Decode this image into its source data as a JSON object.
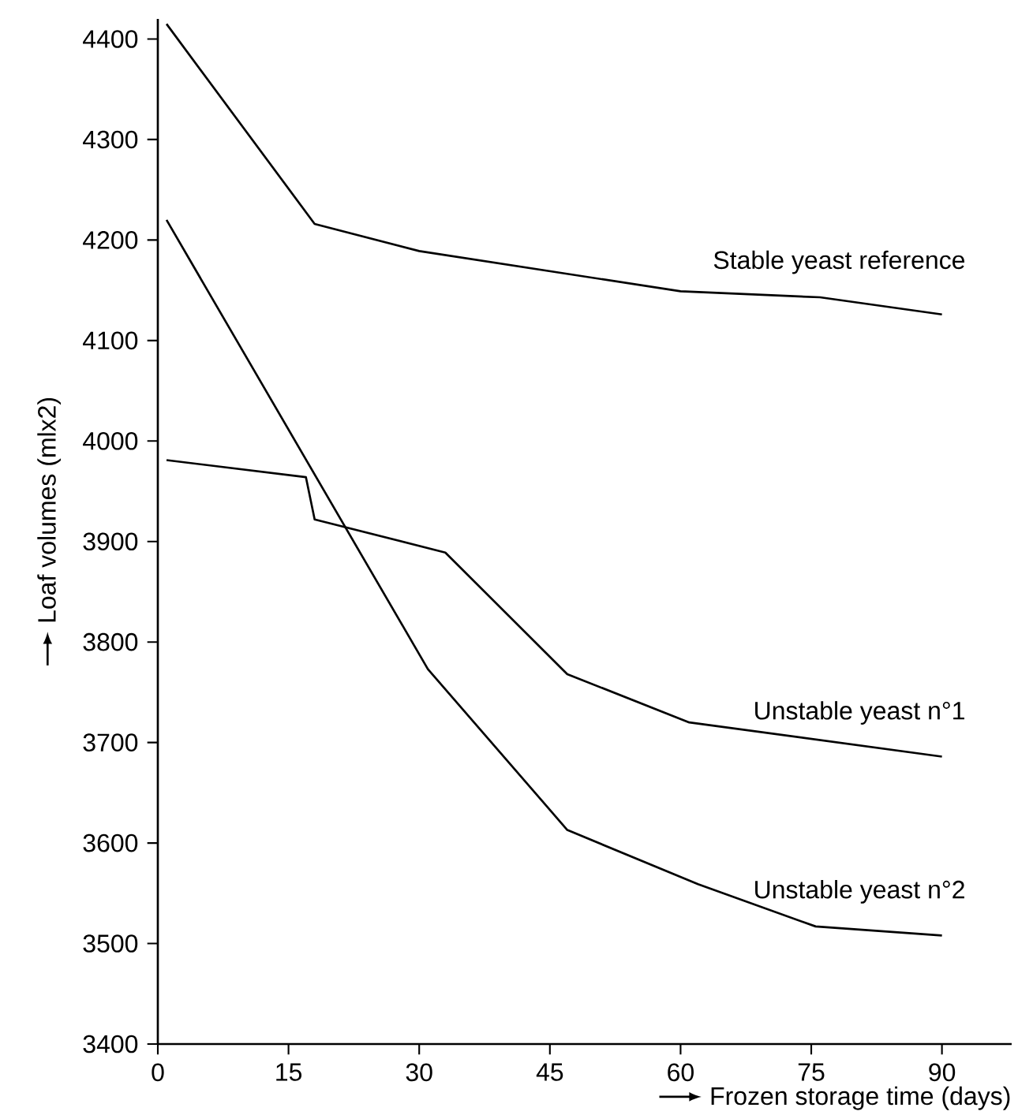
{
  "chart_data": {
    "type": "line",
    "xlabel": "Frozen storage time (days)",
    "ylabel": "Loaf volumes (mlx2)",
    "xlim": [
      0,
      98
    ],
    "ylim": [
      3400,
      4420
    ],
    "xticks": [
      0,
      15,
      30,
      45,
      60,
      75,
      90
    ],
    "yticks": [
      3400,
      3500,
      3600,
      3700,
      3800,
      3900,
      4000,
      4100,
      4200,
      4300,
      4400
    ],
    "grid": false,
    "legend": false,
    "marker": "none",
    "line_style": "solid",
    "series": [
      {
        "name": "Stable yeast reference",
        "color": "#000000",
        "x": [
          1,
          18,
          30,
          60,
          76,
          90
        ],
        "values": [
          4415,
          4216,
          4189,
          4149,
          4143,
          4126
        ]
      },
      {
        "name": "Unstable yeast n°1",
        "color": "#000000",
        "x": [
          1,
          17,
          18,
          33,
          47,
          61,
          90
        ],
        "values": [
          3981,
          3964,
          3922,
          3889,
          3768,
          3720,
          3686
        ]
      },
      {
        "name": "Unstable yeast n°2",
        "color": "#000000",
        "x": [
          1,
          31,
          47,
          62,
          75.5,
          90
        ],
        "values": [
          4220,
          3773,
          3613,
          3559,
          3517,
          3508
        ]
      }
    ]
  }
}
